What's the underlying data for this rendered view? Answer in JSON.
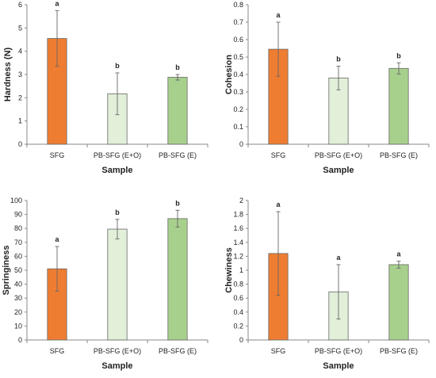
{
  "colors": {
    "orange": "#EE7D31",
    "light_green": "#E2EFD9",
    "green": "#A8D08D",
    "border": "#666666"
  },
  "chart_data": [
    {
      "type": "bar",
      "id": "hardness",
      "ylabel": "Hardness (N)",
      "xlabel": "Sample",
      "categories": [
        "SFG",
        "PB-SFG (E+O)",
        "PB-SFG (E)"
      ],
      "values": [
        4.55,
        2.17,
        2.88
      ],
      "errors": [
        1.2,
        0.9,
        0.12
      ],
      "letters": [
        "a",
        "b",
        "b"
      ],
      "ylim": [
        0,
        6
      ],
      "yticks": [
        0,
        1,
        2,
        3,
        4,
        5,
        6
      ],
      "yticklabels": [
        "0",
        "1",
        "2",
        "3",
        "4",
        "5",
        "6"
      ],
      "bar_colors": [
        "#EE7D31",
        "#E2EFD9",
        "#A8D08D"
      ]
    },
    {
      "type": "bar",
      "id": "cohesion",
      "ylabel": "Cohesion",
      "xlabel": "Sample",
      "categories": [
        "SFG",
        "PB-SFG (E+O)",
        "PB-SFG (E)"
      ],
      "values": [
        0.545,
        0.38,
        0.435
      ],
      "errors": [
        0.155,
        0.068,
        0.032
      ],
      "letters": [
        "a",
        "b",
        "b"
      ],
      "ylim": [
        0,
        0.8
      ],
      "yticks": [
        0,
        0.1,
        0.2,
        0.3,
        0.4,
        0.5,
        0.6,
        0.7,
        0.8
      ],
      "yticklabels": [
        "0",
        "0.1",
        "0.2",
        "0.3",
        "0.4",
        "0.5",
        "0.6",
        "0.7",
        "0.8"
      ],
      "bar_colors": [
        "#EE7D31",
        "#E2EFD9",
        "#A8D08D"
      ]
    },
    {
      "type": "bar",
      "id": "springiness",
      "ylabel": "Springiness",
      "xlabel": "Sample",
      "categories": [
        "SFG",
        "PB-SFG (E+O)",
        "PB-SFG (E)"
      ],
      "values": [
        51,
        79.5,
        87
      ],
      "errors": [
        16,
        7,
        6
      ],
      "letters": [
        "a",
        "b",
        "b"
      ],
      "ylim": [
        0,
        100
      ],
      "yticks": [
        0,
        10,
        20,
        30,
        40,
        50,
        60,
        70,
        80,
        90,
        100
      ],
      "yticklabels": [
        "0",
        "10",
        "20",
        "30",
        "40",
        "50",
        "60",
        "70",
        "80",
        "90",
        "100"
      ],
      "bar_colors": [
        "#EE7D31",
        "#E2EFD9",
        "#A8D08D"
      ]
    },
    {
      "type": "bar",
      "id": "chewiness",
      "ylabel": "Chewiness",
      "xlabel": "Sample",
      "categories": [
        "SFG",
        "PB-SFG (E+O)",
        "PB-SFG (E)"
      ],
      "values": [
        1.24,
        0.69,
        1.08
      ],
      "errors": [
        0.6,
        0.39,
        0.05
      ],
      "letters": [
        "a",
        "a",
        "a"
      ],
      "ylim": [
        0,
        2
      ],
      "yticks": [
        0,
        0.2,
        0.4,
        0.6,
        0.8,
        1,
        1.2,
        1.4,
        1.6,
        1.8,
        2
      ],
      "yticklabels": [
        "0",
        "0.2",
        "0.4",
        "0.6",
        "0.8",
        "1",
        "1.2",
        "1.4",
        "1.6",
        "1.8",
        "2"
      ],
      "bar_colors": [
        "#EE7D31",
        "#E2EFD9",
        "#A8D08D"
      ]
    }
  ]
}
